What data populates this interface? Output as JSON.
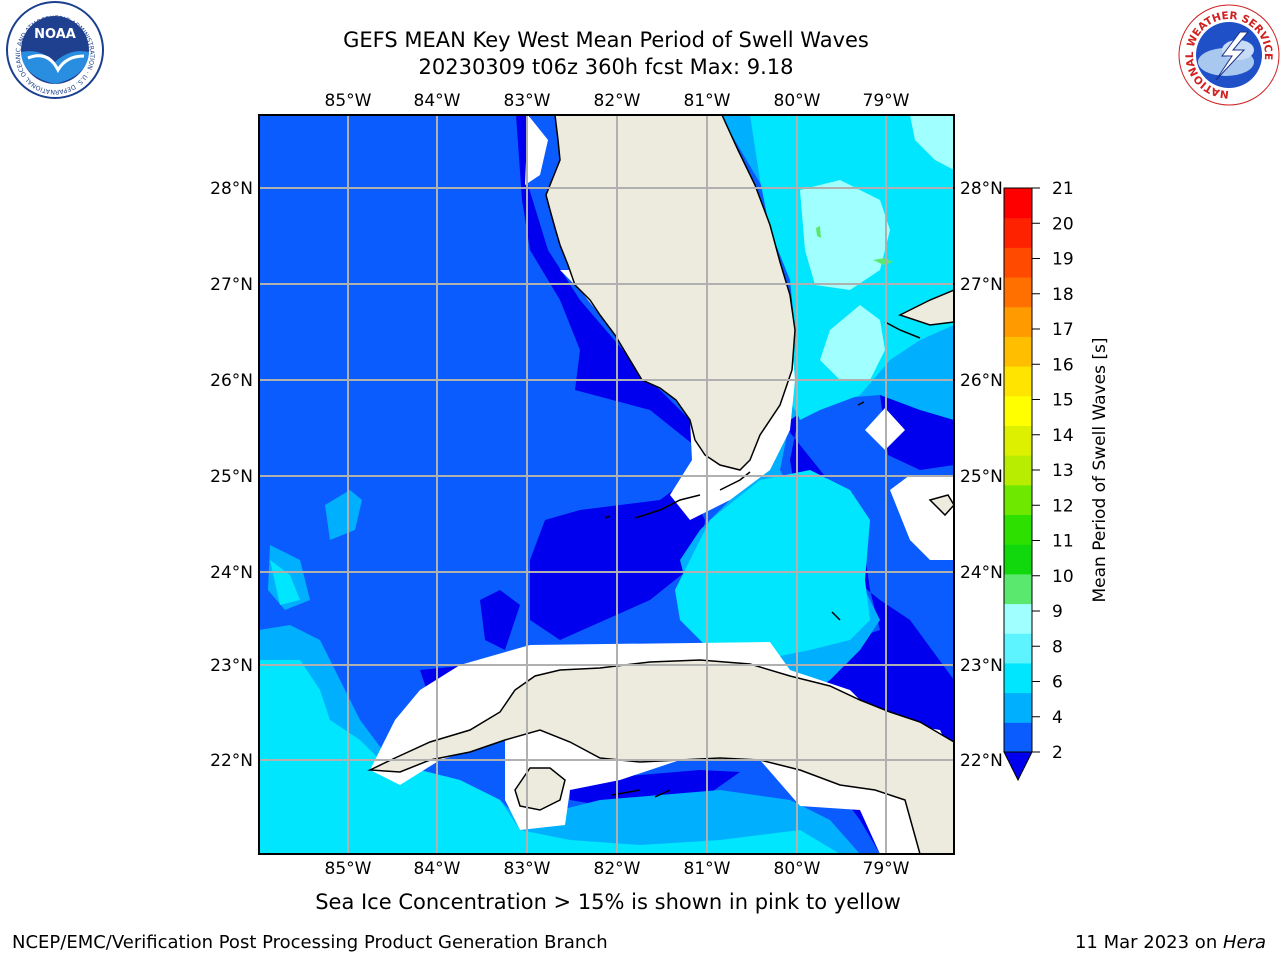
{
  "title": {
    "line1": "GEFS MEAN Key West Mean Period of Swell Waves",
    "line2": "20230309 t06z 360h fcst   Max: 9.18"
  },
  "map": {
    "lon_labels": [
      "85°W",
      "84°W",
      "83°W",
      "82°W",
      "81°W",
      "80°W",
      "79°W"
    ],
    "lat_labels": [
      "28°N",
      "27°N",
      "26°N",
      "25°N",
      "24°N",
      "23°N",
      "22°N"
    ],
    "features": [
      "florida-peninsula",
      "florida-keys",
      "cuba",
      "isla-de-la-juventud",
      "bahamas"
    ]
  },
  "colorbar": {
    "label": "Mean Period of Swell Waves [s]",
    "ticks": [
      "21",
      "20",
      "19",
      "18",
      "17",
      "16",
      "15",
      "14",
      "13",
      "12",
      "11",
      "10",
      "9",
      "8",
      "6",
      "4",
      "2"
    ],
    "colors": [
      "#0a5cff",
      "#00b0ff",
      "#00e6ff",
      "#5df3ff",
      "#a0ffff",
      "#5ae86e",
      "#11d80c",
      "#2ee000",
      "#6fe800",
      "#b8ec00",
      "#dcf000",
      "#ffff00",
      "#ffe400",
      "#ffbf00",
      "#ff9a00",
      "#ff7000",
      "#ff4a00",
      "#ff2200",
      "#ff0000"
    ],
    "under_color": "#0000ee"
  },
  "legend": {
    "caption": "Sea Ice Concentration > 15% is shown in pink to yellow"
  },
  "footer": {
    "left": "NCEP/EMC/Verification Post Processing Product Generation Branch",
    "date": "11 Mar 2023 on ",
    "machine": "Hera"
  },
  "logos": {
    "noaa_text": "NOAA",
    "noaa_ring": "NATIONAL OCEANIC AND ATMOSPHERIC ADMINISTRATION · U.S. DEPARTMENT OF COMMERCE",
    "nws_ring": "NATIONAL WEATHER SERVICE"
  }
}
